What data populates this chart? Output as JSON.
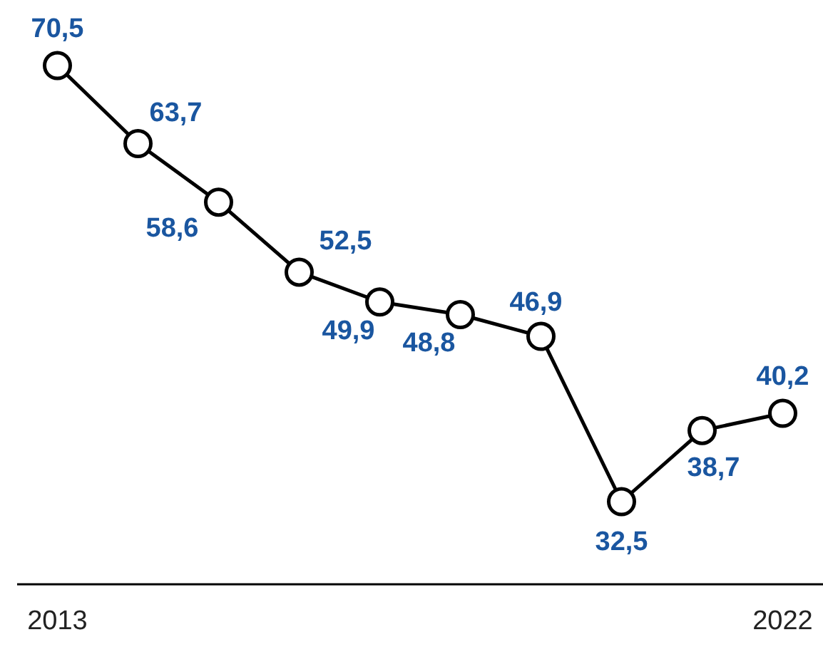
{
  "chart_data": {
    "type": "line",
    "x": [
      2013,
      2014,
      2015,
      2016,
      2017,
      2018,
      2019,
      2020,
      2021,
      2022
    ],
    "series": [
      {
        "color": "#000000",
        "values": [
          70.5,
          63.7,
          58.6,
          52.5,
          49.9,
          48.8,
          46.9,
          32.5,
          38.7,
          40.2
        ],
        "value_labels": [
          "70,5",
          "63,7",
          "58,6",
          "52,5",
          "49,9",
          "48,8",
          "46,9",
          "32,5",
          "38,7",
          "40,2"
        ]
      }
    ],
    "xlim": [
      2012.5,
      2022.5
    ],
    "xticks": [
      2013,
      2022
    ],
    "tick_labels": "x",
    "marker": "circle",
    "line_style": "solid"
  }
}
